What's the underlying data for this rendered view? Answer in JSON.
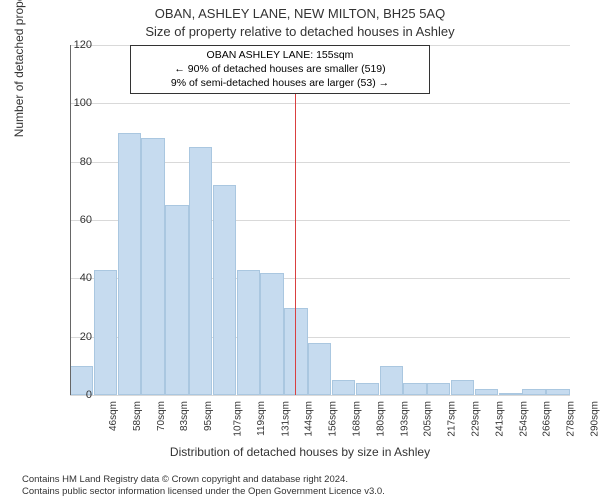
{
  "title_line1": "OBAN, ASHLEY LANE, NEW MILTON, BH25 5AQ",
  "title_line2": "Size of property relative to detached houses in Ashley",
  "annotation": {
    "line1": "OBAN ASHLEY LANE: 155sqm",
    "line2": "← 90% of detached houses are smaller (519)",
    "line3": "9% of semi-detached houses are larger (53) →"
  },
  "chart": {
    "type": "histogram",
    "y_axis_title": "Number of detached properties",
    "x_axis_title": "Distribution of detached houses by size in Ashley",
    "ylim": [
      0,
      120
    ],
    "ytick_step": 20,
    "bar_color": "#c6dbef",
    "bar_border_color": "#aac7e0",
    "grid_color": "#d9d9d9",
    "marker_value": 155,
    "marker_color": "#d94040",
    "background_color": "#ffffff",
    "label_fontsize": 12,
    "tick_fontsize": 10,
    "x_labels": [
      "46sqm",
      "58sqm",
      "70sqm",
      "83sqm",
      "95sqm",
      "107sqm",
      "119sqm",
      "131sqm",
      "144sqm",
      "156sqm",
      "168sqm",
      "180sqm",
      "193sqm",
      "205sqm",
      "217sqm",
      "229sqm",
      "241sqm",
      "254sqm",
      "266sqm",
      "278sqm",
      "290sqm"
    ],
    "values": [
      10,
      43,
      90,
      88,
      65,
      85,
      72,
      43,
      42,
      30,
      18,
      5,
      4,
      10,
      4,
      4,
      5,
      2,
      0,
      2,
      2
    ]
  },
  "footer": {
    "line1": "Contains HM Land Registry data © Crown copyright and database right 2024.",
    "line2": "Contains public sector information licensed under the Open Government Licence v3.0."
  }
}
